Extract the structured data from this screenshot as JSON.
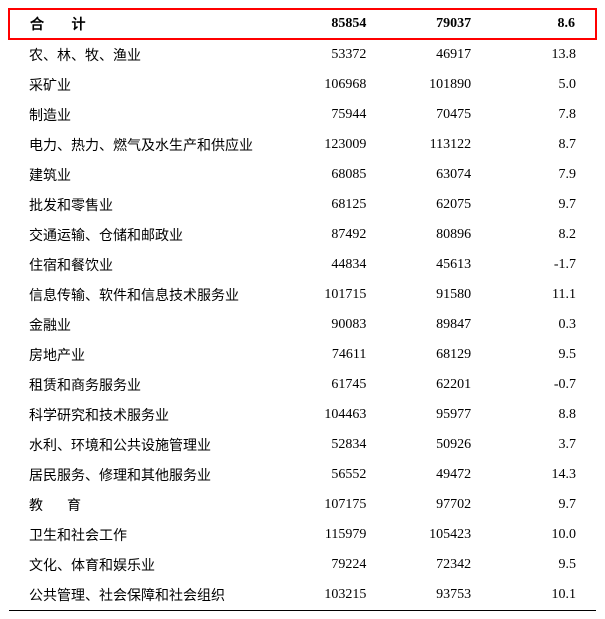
{
  "table": {
    "colors": {
      "highlight_border": "#ff0000",
      "rule_color": "#000000",
      "text_color": "#000000",
      "background": "#ffffff"
    },
    "fontsize": 14,
    "font_family": "SimSun",
    "header": {
      "label": "合 计",
      "col1": "85854",
      "col2": "79037",
      "col3": "8.6"
    },
    "rows": [
      {
        "name": "农、林、牧、渔业",
        "v1": "53372",
        "v2": "46917",
        "v3": "13.8"
      },
      {
        "name": "采矿业",
        "v1": "106968",
        "v2": "101890",
        "v3": "5.0"
      },
      {
        "name": "制造业",
        "v1": "75944",
        "v2": "70475",
        "v3": "7.8"
      },
      {
        "name": "电力、热力、燃气及水生产和供应业",
        "v1": "123009",
        "v2": "113122",
        "v3": "8.7"
      },
      {
        "name": "建筑业",
        "v1": "68085",
        "v2": "63074",
        "v3": "7.9"
      },
      {
        "name": "批发和零售业",
        "v1": "68125",
        "v2": "62075",
        "v3": "9.7"
      },
      {
        "name": "交通运输、仓储和邮政业",
        "v1": "87492",
        "v2": "80896",
        "v3": "8.2"
      },
      {
        "name": "住宿和餐饮业",
        "v1": "44834",
        "v2": "45613",
        "v3": "-1.7"
      },
      {
        "name": "信息传输、软件和信息技术服务业",
        "v1": "101715",
        "v2": "91580",
        "v3": "11.1"
      },
      {
        "name": "金融业",
        "v1": "90083",
        "v2": "89847",
        "v3": "0.3"
      },
      {
        "name": "房地产业",
        "v1": "74611",
        "v2": "68129",
        "v3": "9.5"
      },
      {
        "name": "租赁和商务服务业",
        "v1": "61745",
        "v2": "62201",
        "v3": "-0.7"
      },
      {
        "name": "科学研究和技术服务业",
        "v1": "104463",
        "v2": "95977",
        "v3": "8.8"
      },
      {
        "name": "水利、环境和公共设施管理业",
        "v1": "52834",
        "v2": "50926",
        "v3": "3.7"
      },
      {
        "name": "居民服务、修理和其他服务业",
        "v1": "56552",
        "v2": "49472",
        "v3": "14.3"
      },
      {
        "name": "教　育",
        "v1": "107175",
        "v2": "97702",
        "v3": "9.7"
      },
      {
        "name": "卫生和社会工作",
        "v1": "115979",
        "v2": "105423",
        "v3": "10.0"
      },
      {
        "name": "文化、体育和娱乐业",
        "v1": "79224",
        "v2": "72342",
        "v3": "9.5"
      },
      {
        "name": "公共管理、社会保障和社会组织",
        "v1": "103215",
        "v2": "93753",
        "v3": "10.1"
      }
    ]
  }
}
